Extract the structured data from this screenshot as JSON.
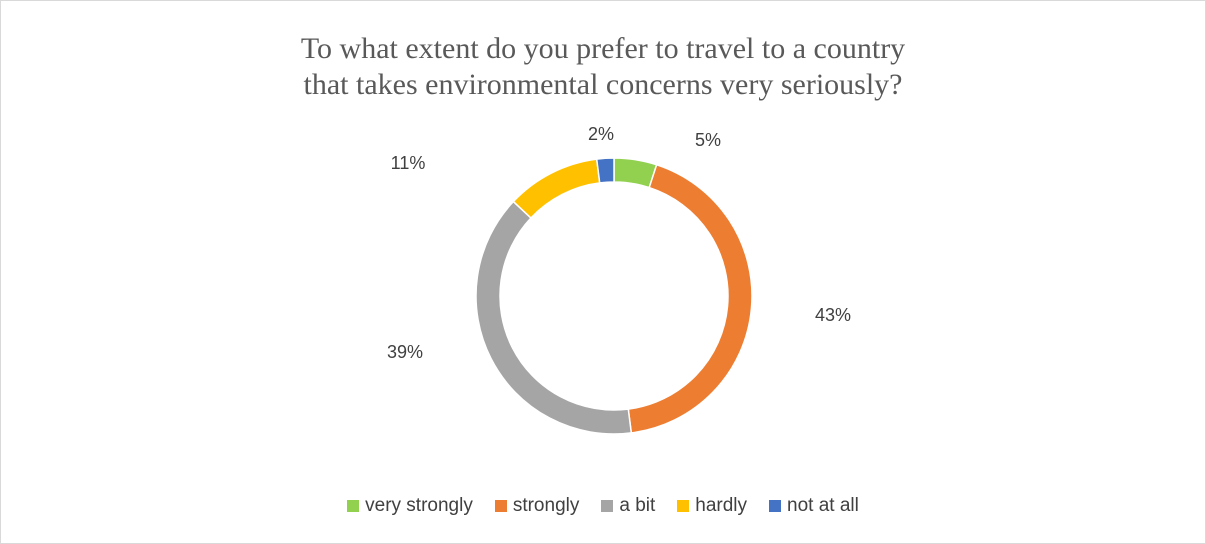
{
  "chart_data": {
    "type": "pie",
    "variant": "donut",
    "title": "To what extent do you prefer to travel to a country that takes environmental concerns very seriously?",
    "title_lines": [
      "To what extent do you prefer to travel to a country",
      "that takes environmental concerns very seriously?"
    ],
    "categories": [
      "very strongly",
      "strongly",
      "a bit",
      "hardly",
      "not at all"
    ],
    "values": [
      5,
      43,
      39,
      11,
      2
    ],
    "labels": [
      "5%",
      "43%",
      "39%",
      "11%",
      "2%"
    ],
    "colors": [
      "#92d050",
      "#ed7d31",
      "#a5a5a5",
      "#ffc000",
      "#4472c4"
    ],
    "legend_position": "bottom"
  }
}
